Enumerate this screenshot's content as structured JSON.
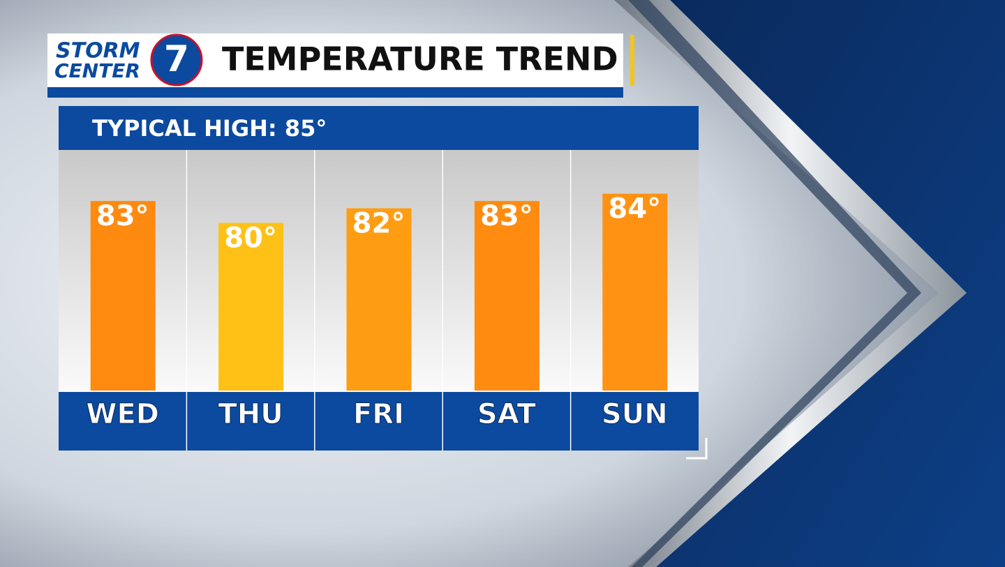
{
  "logo": {
    "line1": "STORM",
    "line2": "CENTER",
    "number": "7"
  },
  "chart_data": {
    "type": "bar",
    "title": "TEMPERATURE TREND",
    "subtitle": "TYPICAL HIGH: 85°",
    "categories": [
      "WED",
      "THU",
      "FRI",
      "SAT",
      "SUN"
    ],
    "values": [
      83,
      80,
      82,
      83,
      84
    ],
    "value_labels": [
      "83°",
      "80°",
      "82°",
      "83°",
      "84°"
    ],
    "colors": [
      "#ff8a10",
      "#ffc116",
      "#ff9d12",
      "#ff8c10",
      "#ff9212"
    ],
    "ylim": [
      57,
      90
    ]
  }
}
